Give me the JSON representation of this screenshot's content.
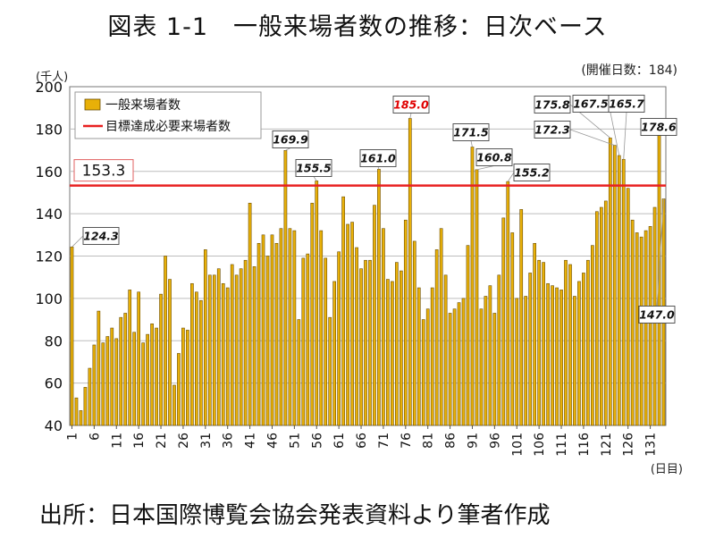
{
  "title": "図表 1-1　一般来場者数の推移：日次ベース",
  "source": "出所：日本国際博覧会協会発表資料より筆者作成",
  "chart_data": {
    "type": "bar",
    "y_unit_label": "(千人)",
    "x_unit_label": "(日目)",
    "corner_note": "(開催日数：184)",
    "ylim": [
      40,
      200
    ],
    "y_ticks": [
      40,
      60,
      80,
      100,
      120,
      140,
      160,
      180,
      200
    ],
    "x_tick_labels": [
      "1",
      "6",
      "11",
      "16",
      "21",
      "26",
      "31",
      "36",
      "41",
      "46",
      "51",
      "56",
      "61",
      "66",
      "71",
      "76",
      "81",
      "86",
      "91",
      "96",
      "101",
      "106",
      "111",
      "116",
      "121",
      "126",
      "131"
    ],
    "grid": true,
    "legend_position": "top-left",
    "series": [
      {
        "name": "一般来場者数",
        "color": "#e8b008",
        "values": [
          124.3,
          53,
          47,
          58,
          67,
          78,
          94,
          79,
          82,
          86,
          81,
          91,
          93,
          104,
          84,
          103,
          79,
          83,
          88,
          86,
          102,
          120,
          109,
          59,
          74,
          86,
          85,
          107,
          103,
          99,
          123,
          111,
          111,
          114,
          107,
          105,
          116,
          111,
          114,
          118,
          145,
          115,
          126,
          130,
          120,
          130,
          126,
          133,
          169.9,
          133,
          132,
          90,
          119,
          121,
          145,
          155.5,
          132,
          119,
          91,
          108,
          122,
          148,
          135,
          136,
          124,
          114,
          118,
          118,
          144,
          161.0,
          133,
          109,
          108,
          117,
          113,
          137,
          185.0,
          127,
          105,
          90,
          95,
          105,
          123,
          133,
          111,
          93,
          95,
          98,
          100,
          125,
          171.5,
          160.8,
          95,
          101,
          106,
          93,
          111,
          138,
          155.2,
          131,
          100,
          142,
          101,
          112,
          126,
          118,
          117,
          107,
          106,
          105,
          104,
          118,
          116,
          101,
          108,
          112,
          118,
          125,
          141,
          143,
          146,
          175.8,
          172.3,
          167.5,
          165.7,
          152,
          137,
          131,
          129,
          132,
          134,
          143,
          178.6,
          147.0
        ]
      },
      {
        "name": "目標達成必要来場者数",
        "color": "#e82020",
        "value": 153.3
      }
    ],
    "target_label": "153.3",
    "annotations": [
      {
        "day": 1,
        "text": "124.3",
        "highlight": false
      },
      {
        "day": 49,
        "text": "169.9",
        "highlight": false
      },
      {
        "day": 56,
        "text": "155.5",
        "highlight": false
      },
      {
        "day": 70,
        "text": "161.0",
        "highlight": false
      },
      {
        "day": 77,
        "text": "185.0",
        "highlight": true
      },
      {
        "day": 91,
        "text": "171.5",
        "highlight": false
      },
      {
        "day": 92,
        "text": "160.8",
        "highlight": false
      },
      {
        "day": 99,
        "text": "155.2",
        "highlight": false
      },
      {
        "day": 122,
        "text": "175.8",
        "highlight": false
      },
      {
        "day": 123,
        "text": "172.3",
        "highlight": false
      },
      {
        "day": 124,
        "text": "167.5",
        "highlight": false
      },
      {
        "day": 125,
        "text": "165.7",
        "highlight": false
      },
      {
        "day": 133,
        "text": "178.6",
        "highlight": false
      },
      {
        "day": 134,
        "text": "147.0",
        "highlight": false
      }
    ]
  }
}
